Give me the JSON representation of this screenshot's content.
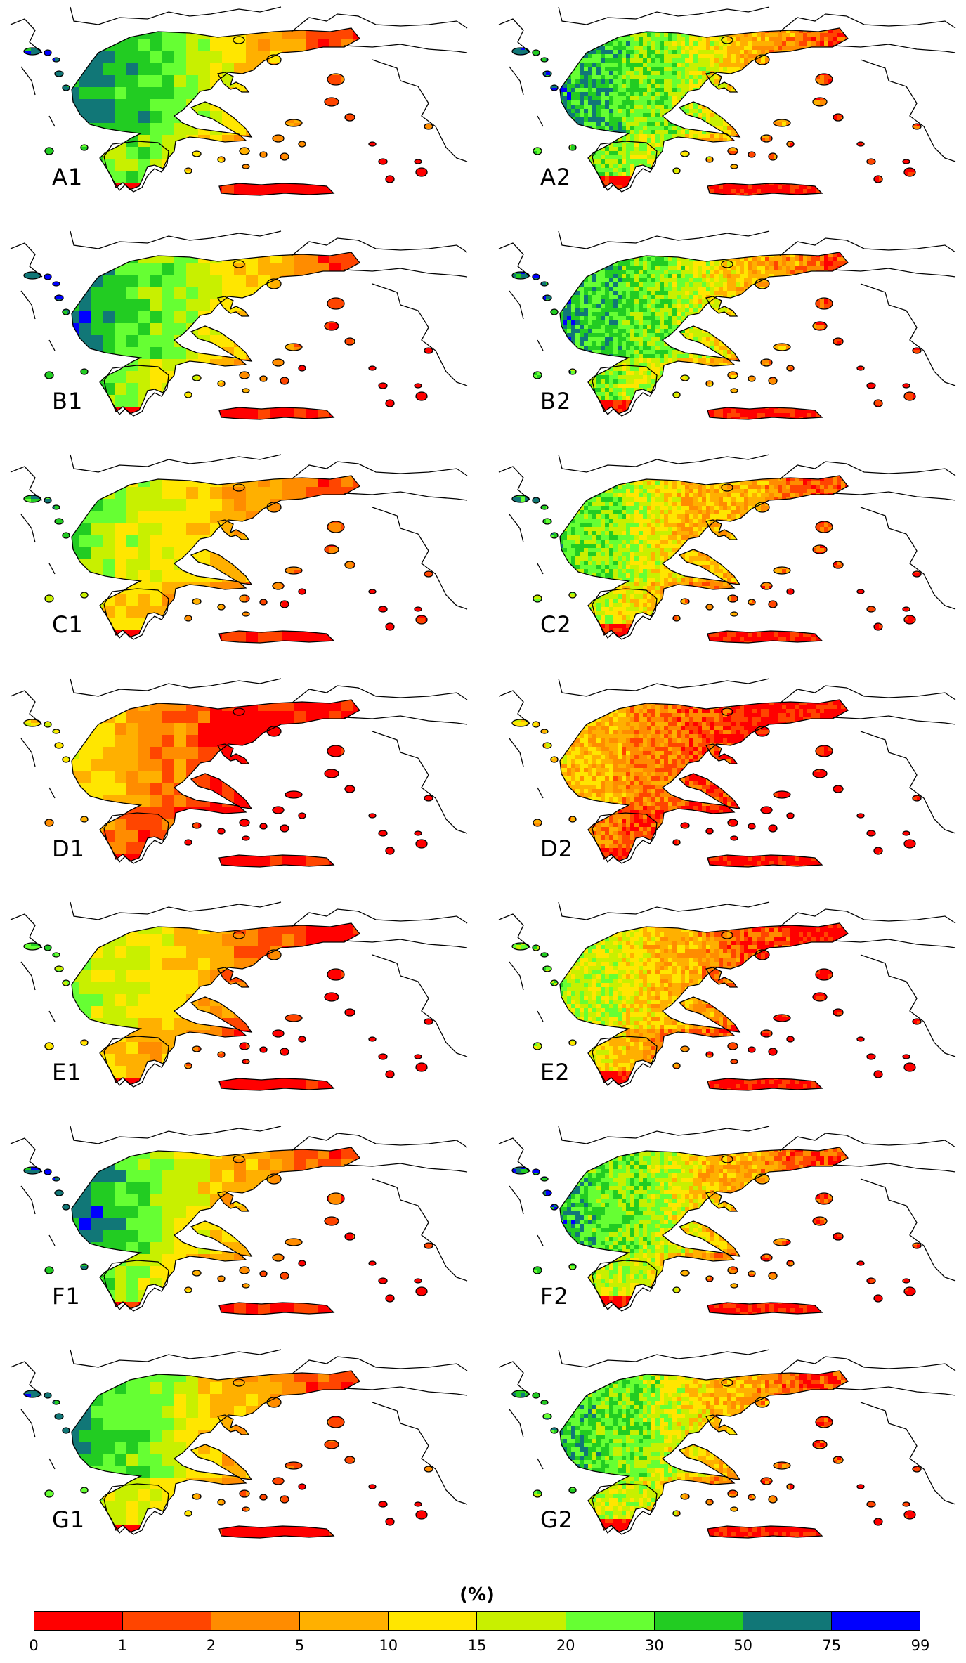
{
  "panels": [
    {
      "label": "A1",
      "type": "coarse",
      "prof": [
        8,
        8,
        7,
        7,
        6,
        5,
        4,
        3,
        3,
        1,
        1
      ]
    },
    {
      "label": "A2",
      "type": "fine",
      "prof": [
        8,
        7,
        7,
        6,
        6,
        5,
        4,
        3,
        3,
        2,
        1
      ]
    },
    {
      "label": "B1",
      "type": "coarse",
      "prof": [
        8,
        8,
        7,
        6,
        6,
        5,
        4,
        3,
        3,
        1,
        1
      ]
    },
    {
      "label": "B2",
      "type": "fine",
      "prof": [
        8,
        7,
        7,
        6,
        6,
        5,
        4,
        3,
        3,
        2,
        1
      ]
    },
    {
      "label": "C1",
      "type": "coarse",
      "prof": [
        7,
        6,
        5,
        5,
        4,
        4,
        3,
        3,
        2,
        1,
        1
      ]
    },
    {
      "label": "C2",
      "type": "fine",
      "prof": [
        7,
        6,
        6,
        5,
        4,
        3,
        3,
        3,
        2,
        1,
        1
      ]
    },
    {
      "label": "D1",
      "type": "coarse",
      "prof": [
        4,
        4,
        3,
        2,
        2,
        1,
        0,
        0,
        0,
        0,
        0
      ]
    },
    {
      "label": "D2",
      "type": "fine",
      "prof": [
        4,
        3,
        3,
        2,
        2,
        1,
        1,
        0,
        0,
        0,
        0
      ]
    },
    {
      "label": "E1",
      "type": "coarse",
      "prof": [
        6,
        5,
        5,
        4,
        4,
        3,
        2,
        1,
        1,
        0,
        0
      ]
    },
    {
      "label": "E2",
      "type": "fine",
      "prof": [
        6,
        5,
        5,
        4,
        3,
        3,
        2,
        1,
        1,
        0,
        0
      ]
    },
    {
      "label": "F1",
      "type": "coarse",
      "prof": [
        8,
        8,
        7,
        6,
        5,
        4,
        3,
        3,
        2,
        1,
        1
      ]
    },
    {
      "label": "F2",
      "type": "fine",
      "prof": [
        8,
        7,
        6,
        6,
        5,
        4,
        3,
        3,
        2,
        1,
        1
      ]
    },
    {
      "label": "G1",
      "type": "coarse",
      "prof": [
        8,
        7,
        6,
        6,
        5,
        4,
        3,
        3,
        2,
        1,
        1
      ]
    },
    {
      "label": "G2",
      "type": "fine",
      "prof": [
        7,
        7,
        6,
        6,
        5,
        4,
        3,
        3,
        2,
        1,
        1
      ]
    }
  ],
  "legend": {
    "unit": "(%)",
    "ticks": [
      "0",
      "1",
      "2",
      "5",
      "10",
      "15",
      "20",
      "30",
      "50",
      "75",
      "99"
    ],
    "colors": [
      "#ff0000",
      "#ff4500",
      "#ff8c00",
      "#ffb000",
      "#ffe600",
      "#c8f000",
      "#66ff33",
      "#22cc22",
      "#117777",
      "#0000ff"
    ]
  }
}
